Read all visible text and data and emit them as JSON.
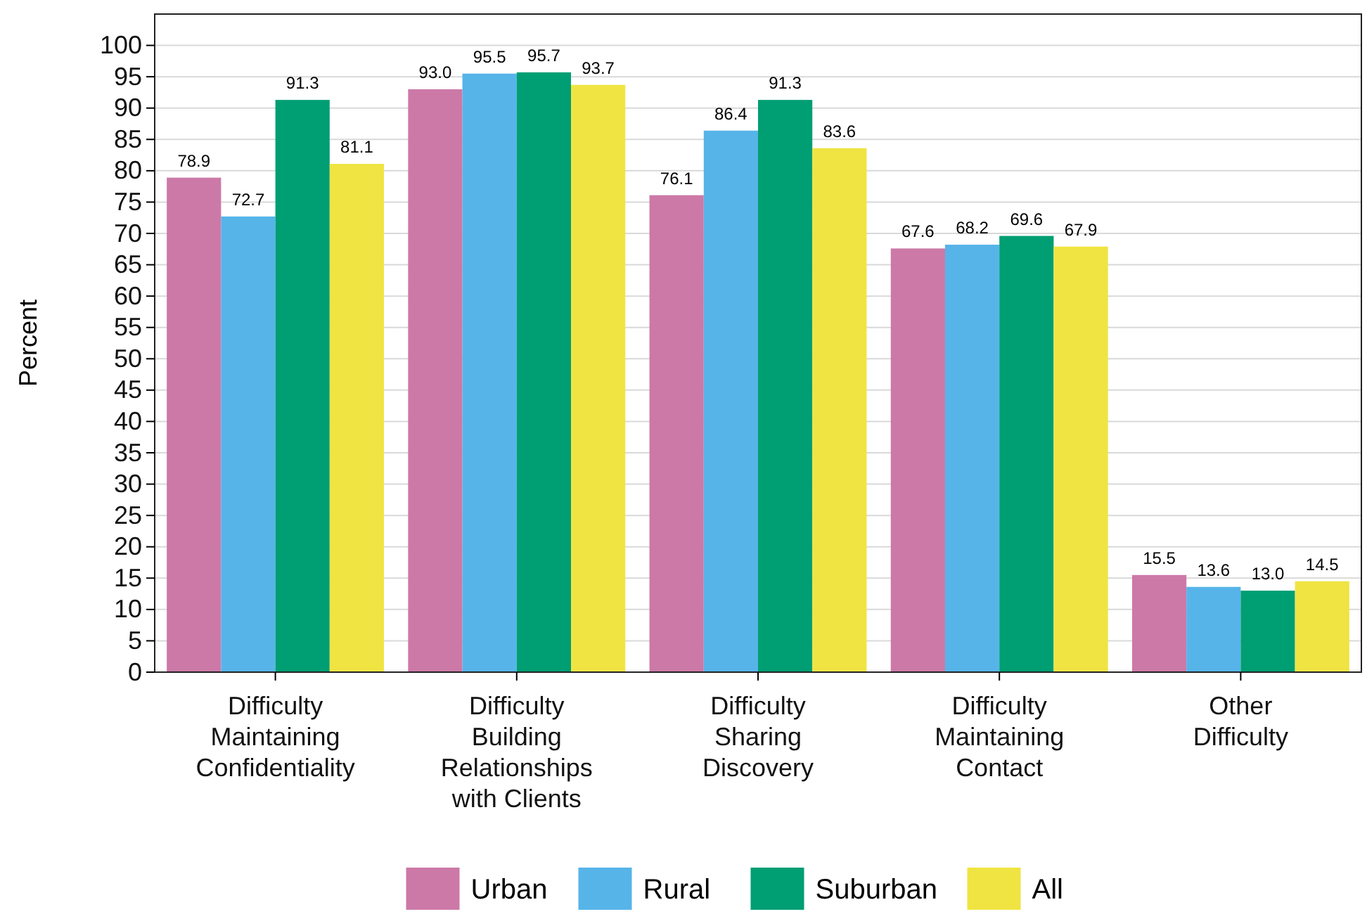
{
  "chart_data": {
    "type": "bar",
    "ylabel": "Percent",
    "categories": [
      "Difficulty Maintaining Confidentiality",
      "Difficulty Building Relationships with Clients",
      "Difficulty Sharing Discovery",
      "Difficulty Maintaining Contact",
      "Other Difficulty"
    ],
    "series": [
      {
        "name": "Urban",
        "color": "#cc79a7",
        "values": [
          78.9,
          93.0,
          76.1,
          67.6,
          15.5
        ],
        "value_labels": [
          "78.9",
          "93.0",
          "76.1",
          "67.6",
          "15.5"
        ]
      },
      {
        "name": "Rural",
        "color": "#56b4e9",
        "values": [
          72.7,
          95.5,
          86.4,
          68.2,
          13.6
        ],
        "value_labels": [
          "72.7",
          "95.5",
          "86.4",
          "68.2",
          "13.6"
        ]
      },
      {
        "name": "Suburban",
        "color": "#009e73",
        "values": [
          91.3,
          95.7,
          91.3,
          69.6,
          13.0
        ],
        "value_labels": [
          "91.3",
          "95.7",
          "91.3",
          "69.6",
          "13.0"
        ]
      },
      {
        "name": "All",
        "color": "#f0e442",
        "values": [
          81.1,
          93.7,
          83.6,
          67.9,
          14.5
        ],
        "value_labels": [
          "81.1",
          "93.7",
          "83.6",
          "67.9",
          "14.5"
        ]
      }
    ],
    "ylim": [
      0,
      105
    ],
    "yticks": [
      0,
      5,
      10,
      15,
      20,
      25,
      30,
      35,
      40,
      45,
      50,
      55,
      60,
      65,
      70,
      75,
      80,
      85,
      90,
      95,
      100
    ],
    "grid": "y",
    "legend": "bottom"
  }
}
